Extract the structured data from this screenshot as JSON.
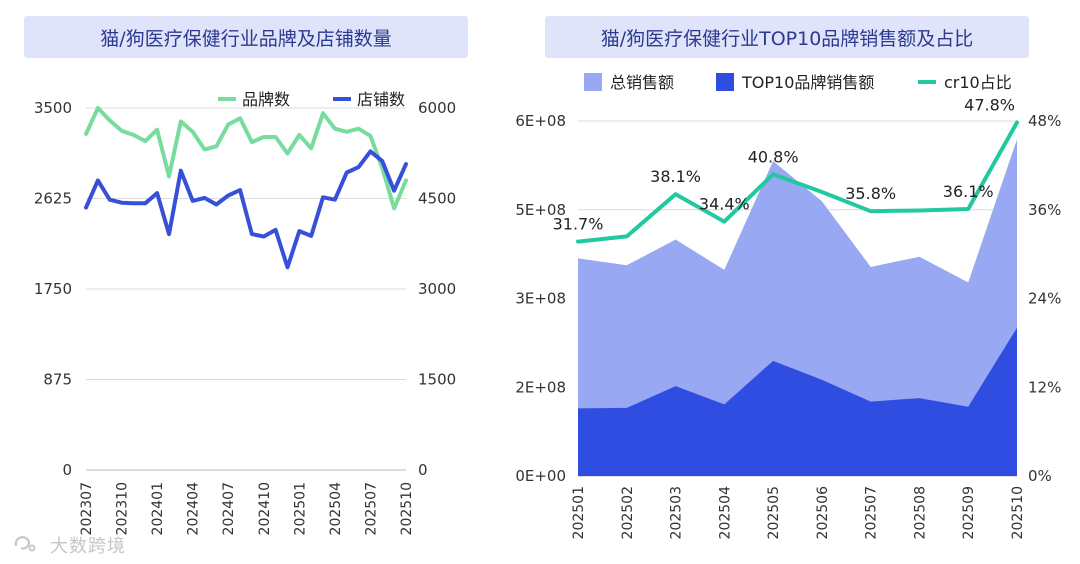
{
  "colors": {
    "pinpai": "#78dc9c",
    "dianpu": "#3650d8",
    "total": "#98a8f2",
    "top10": "#2f4de0",
    "cr10": "#22c9a0",
    "grid": "#dcdcdc",
    "title_bg": "#dfe4fb",
    "title_text": "#2b3a8f"
  },
  "watermark": {
    "text": "大数跨境"
  },
  "chart_data": [
    {
      "type": "line",
      "title": "猫/狗医疗保健行业品牌及店铺数量",
      "x": [
        "202307",
        "202308",
        "202309",
        "202310",
        "202311",
        "202312",
        "202401",
        "202402",
        "202403",
        "202404",
        "202405",
        "202406",
        "202407",
        "202408",
        "202409",
        "202410",
        "202411",
        "202412",
        "202501",
        "202502",
        "202503",
        "202504",
        "202505",
        "202506",
        "202507",
        "202508",
        "202509",
        "202510"
      ],
      "x_tick_labels": [
        "202307",
        "202310",
        "202401",
        "202404",
        "202407",
        "202410",
        "202501",
        "202504",
        "202507",
        "202510"
      ],
      "y_left": {
        "ticks": [
          "0",
          "875",
          "1750",
          "2625",
          "3500"
        ],
        "min": 0,
        "max": 3500
      },
      "y_right": {
        "ticks": [
          "0",
          "1500",
          "3000",
          "4500",
          "6000"
        ],
        "min": 0,
        "max": 6000
      },
      "series": [
        {
          "name": "品牌数",
          "axis": "left",
          "values": [
            3250,
            3500,
            3380,
            3280,
            3240,
            3180,
            3290,
            2840,
            3370,
            3270,
            3100,
            3130,
            3340,
            3400,
            3170,
            3220,
            3220,
            3060,
            3240,
            3110,
            3450,
            3300,
            3270,
            3300,
            3230,
            2920,
            2530,
            2800
          ]
        },
        {
          "name": "店铺数",
          "axis": "right",
          "values": [
            4350,
            4800,
            4480,
            4430,
            4420,
            4420,
            4590,
            3910,
            4960,
            4460,
            4510,
            4400,
            4550,
            4640,
            3910,
            3870,
            3980,
            3360,
            3960,
            3880,
            4520,
            4480,
            4930,
            5020,
            5280,
            5120,
            4630,
            5070
          ]
        }
      ]
    },
    {
      "type": "area",
      "title": "猫/狗医疗保健行业TOP10品牌销售额及占比",
      "x": [
        "202501",
        "202502",
        "202503",
        "202504",
        "202505",
        "202506",
        "202507",
        "202508",
        "202509",
        "202510"
      ],
      "y_left": {
        "ticks": [
          "0E+00",
          "2E+08",
          "3E+08",
          "5E+08",
          "6E+08"
        ],
        "min": 0,
        "max": 620000000
      },
      "y_right": {
        "ticks": [
          "0%",
          "12%",
          "24%",
          "36%",
          "48%"
        ],
        "min": 0,
        "max": 48
      },
      "series": [
        {
          "name": "总销售额",
          "axis": "left",
          "values": [
            380000000,
            368000000,
            413000000,
            360000000,
            550000000,
            480000000,
            365000000,
            383000000,
            338000000,
            588000000
          ]
        },
        {
          "name": "TOP10品牌销售额",
          "axis": "left",
          "values": [
            118000000,
            119000000,
            157000000,
            125000000,
            201000000,
            168000000,
            130000000,
            136000000,
            121000000,
            259000000
          ]
        },
        {
          "name": "cr10占比",
          "axis": "right",
          "values": [
            31.7,
            32.4,
            38.1,
            34.4,
            40.8,
            38.4,
            35.8,
            35.9,
            36.1,
            47.8
          ]
        }
      ],
      "data_labels": [
        {
          "index": 0,
          "text": "31.7%"
        },
        {
          "index": 2,
          "text": "38.1%"
        },
        {
          "index": 3,
          "text": "34.4%"
        },
        {
          "index": 4,
          "text": "40.8%"
        },
        {
          "index": 6,
          "text": "35.8%"
        },
        {
          "index": 8,
          "text": "36.1%"
        },
        {
          "index": 9,
          "text": "47.8%"
        }
      ]
    }
  ]
}
